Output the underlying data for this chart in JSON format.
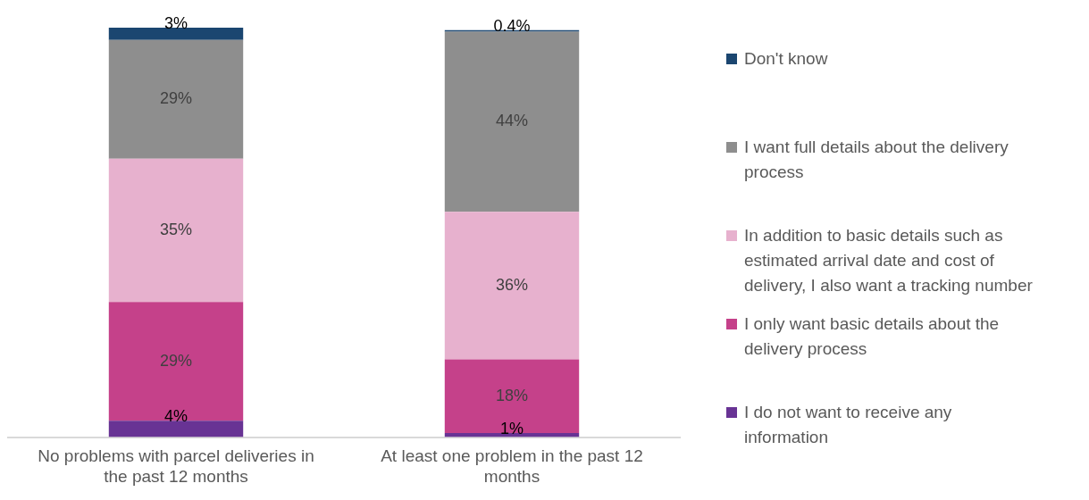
{
  "chart_data": {
    "type": "bar",
    "stacked": true,
    "categories": [
      "No problems with parcel deliveries in the past 12 months",
      "At least one problem in the past 12 months"
    ],
    "series": [
      {
        "name": "I do not want to receive any information",
        "color": "#683394",
        "values": [
          4,
          1
        ],
        "value_labels": [
          "4%",
          "1%"
        ]
      },
      {
        "name": "I only want basic details about the delivery process",
        "color": "#c5418a",
        "values": [
          29,
          18
        ],
        "value_labels": [
          "29%",
          "18%"
        ]
      },
      {
        "name": "In addition to basic details such as estimated arrival date and cost of delivery, I also want a tracking number",
        "color": "#e7b1ce",
        "values": [
          35,
          36
        ],
        "value_labels": [
          "35%",
          "36%"
        ]
      },
      {
        "name": "I want full details about the delivery process",
        "color": "#8e8e8e",
        "values": [
          29,
          44
        ],
        "value_labels": [
          "29%",
          "44%"
        ]
      },
      {
        "name": "Don't know",
        "color": "#1b4670",
        "values": [
          3,
          0.4
        ],
        "value_labels": [
          "3%",
          "0.4%"
        ]
      }
    ],
    "ylim": [
      0,
      100
    ],
    "tick_labels": "x",
    "legend": "right"
  }
}
